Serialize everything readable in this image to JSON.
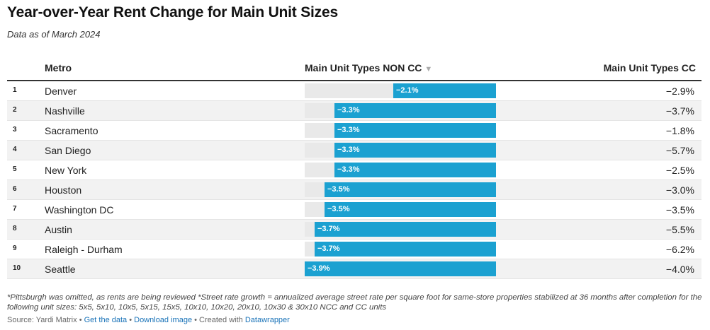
{
  "title": "Year-over-Year Rent Change for Main Unit Sizes",
  "subtitle": "Data as of March 2024",
  "columns": {
    "metro": "Metro",
    "noncc": "Main Unit Types NON CC",
    "cc": "Main Unit Types CC",
    "sort_icon": "▼"
  },
  "colors": {
    "bar": "#1ba1d1",
    "track": "#e9e9e9"
  },
  "chart_data": {
    "type": "table",
    "title": "Year-over-Year Rent Change for Main Unit Sizes",
    "subtitle": "Data as of March 2024",
    "columns": [
      "Metro",
      "Main Unit Types NON CC",
      "Main Unit Types CC"
    ],
    "bar_scale_max_abs": 3.9,
    "rows": [
      {
        "rank": "1",
        "metro": "Denver",
        "noncc": -2.1,
        "noncc_label": "−2.1%",
        "cc": "−2.9%"
      },
      {
        "rank": "2",
        "metro": "Nashville",
        "noncc": -3.3,
        "noncc_label": "−3.3%",
        "cc": "−3.7%"
      },
      {
        "rank": "3",
        "metro": "Sacramento",
        "noncc": -3.3,
        "noncc_label": "−3.3%",
        "cc": "−1.8%"
      },
      {
        "rank": "4",
        "metro": "San Diego",
        "noncc": -3.3,
        "noncc_label": "−3.3%",
        "cc": "−5.7%"
      },
      {
        "rank": "5",
        "metro": "New York",
        "noncc": -3.3,
        "noncc_label": "−3.3%",
        "cc": "−2.5%"
      },
      {
        "rank": "6",
        "metro": "Houston",
        "noncc": -3.5,
        "noncc_label": "−3.5%",
        "cc": "−3.0%"
      },
      {
        "rank": "7",
        "metro": "Washington DC",
        "noncc": -3.5,
        "noncc_label": "−3.5%",
        "cc": "−3.5%"
      },
      {
        "rank": "8",
        "metro": "Austin",
        "noncc": -3.7,
        "noncc_label": "−3.7%",
        "cc": "−5.5%"
      },
      {
        "rank": "9",
        "metro": "Raleigh - Durham",
        "noncc": -3.7,
        "noncc_label": "−3.7%",
        "cc": "−6.2%"
      },
      {
        "rank": "10",
        "metro": "Seattle",
        "noncc": -3.9,
        "noncc_label": "−3.9%",
        "cc": "−4.0%"
      }
    ]
  },
  "footer": {
    "note": "*Pittsburgh was omitted, as rents are being reviewed *Street rate growth = annualized average street rate per square foot for same-store properties stabilized at 36 months after completion for the following unit sizes: 5x5, 5x10, 10x5, 5x15, 15x5, 10x10, 10x20, 20x10, 10x30 & 30x10 NCC and CC units",
    "source_label": "Source: Yardi Matrix",
    "sep": " • ",
    "get_data": "Get the data",
    "download_image": "Download image",
    "created_with": "Created with",
    "datawrapper": "Datawrapper"
  }
}
